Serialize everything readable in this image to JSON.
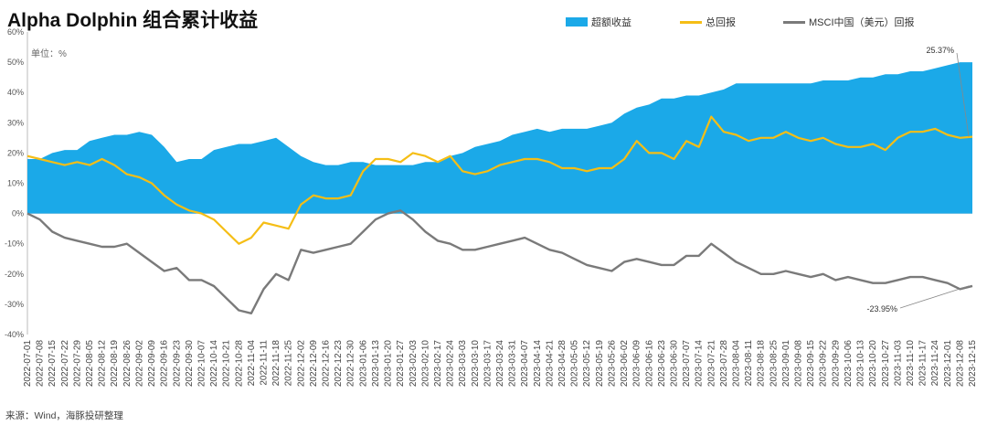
{
  "chart_data": {
    "type": "area+line",
    "title": "Alpha Dolphin 组合累计收益",
    "unit_label": "单位：%",
    "source": "来源：Wind，海豚投研整理",
    "ylim": [
      -40,
      60
    ],
    "y_ticks": [
      "60%",
      "50%",
      "40%",
      "30%",
      "20%",
      "10%",
      "0%",
      "-10%",
      "-20%",
      "-30%",
      "-40%"
    ],
    "x_ticks": [
      "2022-07-01",
      "2022-07-08",
      "2022-07-15",
      "2022-07-22",
      "2022-07-29",
      "2022-08-05",
      "2022-08-12",
      "2022-08-19",
      "2022-08-26",
      "2022-09-02",
      "2022-09-09",
      "2022-09-16",
      "2022-09-23",
      "2022-09-30",
      "2022-10-07",
      "2022-10-14",
      "2022-10-21",
      "2022-10-28",
      "2022-11-04",
      "2022-11-11",
      "2022-11-18",
      "2022-11-25",
      "2022-12-02",
      "2022-12-09",
      "2022-12-16",
      "2022-12-23",
      "2022-12-30",
      "2023-01-06",
      "2023-01-13",
      "2023-01-20",
      "2023-01-27",
      "2023-02-03",
      "2023-02-10",
      "2023-02-17",
      "2023-02-24",
      "2023-03-03",
      "2023-03-10",
      "2023-03-17",
      "2023-03-24",
      "2023-03-31",
      "2023-04-07",
      "2023-04-14",
      "2023-04-21",
      "2023-04-28",
      "2023-05-05",
      "2023-05-12",
      "2023-05-19",
      "2023-05-26",
      "2023-06-02",
      "2023-06-09",
      "2023-06-16",
      "2023-06-23",
      "2023-06-30",
      "2023-07-07",
      "2023-07-14",
      "2023-07-21",
      "2023-07-28",
      "2023-08-04",
      "2023-08-11",
      "2023-08-18",
      "2023-08-25",
      "2023-09-01",
      "2023-09-08",
      "2023-09-15",
      "2023-09-22",
      "2023-09-29",
      "2023-10-06",
      "2023-10-13",
      "2023-10-20",
      "2023-10-27",
      "2023-11-03",
      "2023-11-10",
      "2023-11-17",
      "2023-11-24",
      "2023-12-01",
      "2023-12-08",
      "2023-12-15"
    ],
    "series": [
      {
        "name": "超额收益",
        "type": "area",
        "color": "#1BA9E8",
        "values": [
          18,
          18,
          20,
          21,
          21,
          24,
          25,
          26,
          26,
          27,
          26,
          22,
          17,
          18,
          18,
          21,
          22,
          23,
          23,
          24,
          25,
          22,
          19,
          17,
          16,
          16,
          17,
          17,
          16,
          16,
          16,
          16,
          17,
          17,
          19,
          20,
          22,
          23,
          24,
          26,
          27,
          28,
          27,
          28,
          28,
          28,
          29,
          30,
          33,
          35,
          36,
          38,
          38,
          39,
          39,
          40,
          41,
          43,
          43,
          43,
          43,
          43,
          43,
          43,
          44,
          44,
          44,
          45,
          45,
          46,
          46,
          47,
          47,
          48,
          49,
          50,
          50
        ]
      },
      {
        "name": "总回报",
        "type": "line",
        "color": "#F5BE16",
        "values": [
          19,
          18,
          17,
          16,
          17,
          16,
          18,
          16,
          13,
          12,
          10,
          6,
          3,
          1,
          0,
          -2,
          -6,
          -10,
          -8,
          -3,
          -4,
          -5,
          3,
          6,
          5,
          5,
          6,
          14,
          18,
          18,
          17,
          20,
          19,
          17,
          19,
          14,
          13,
          14,
          16,
          17,
          18,
          18,
          17,
          15,
          15,
          14,
          15,
          15,
          18,
          24,
          20,
          20,
          18,
          24,
          22,
          32,
          27,
          26,
          24,
          25,
          25,
          27,
          25,
          24,
          25,
          23,
          22,
          22,
          23,
          21,
          25,
          27,
          27,
          28,
          26,
          25,
          25.37
        ]
      },
      {
        "name": "MSCI中国（美元）回报",
        "type": "line",
        "color": "#7A7A7A",
        "values": [
          0,
          -2,
          -6,
          -8,
          -9,
          -10,
          -11,
          -11,
          -10,
          -13,
          -16,
          -19,
          -18,
          -22,
          -22,
          -24,
          -28,
          -32,
          -33,
          -25,
          -20,
          -22,
          -12,
          -13,
          -12,
          -11,
          -10,
          -6,
          -2,
          0,
          1,
          -2,
          -6,
          -9,
          -10,
          -12,
          -12,
          -11,
          -10,
          -9,
          -8,
          -10,
          -12,
          -13,
          -15,
          -17,
          -18,
          -19,
          -16,
          -15,
          -16,
          -17,
          -17,
          -14,
          -14,
          -10,
          -13,
          -16,
          -18,
          -20,
          -20,
          -19,
          -20,
          -21,
          -20,
          -22,
          -21,
          -22,
          -23,
          -23,
          -22,
          -21,
          -21,
          -22,
          -23,
          -25,
          -23.95
        ]
      }
    ],
    "annotations": [
      {
        "text": "25.37%",
        "series": "总回报",
        "x_index": 76
      },
      {
        "text": "-23.95%",
        "series": "MSCI中国（美元）回报",
        "x_index": 76
      }
    ]
  }
}
